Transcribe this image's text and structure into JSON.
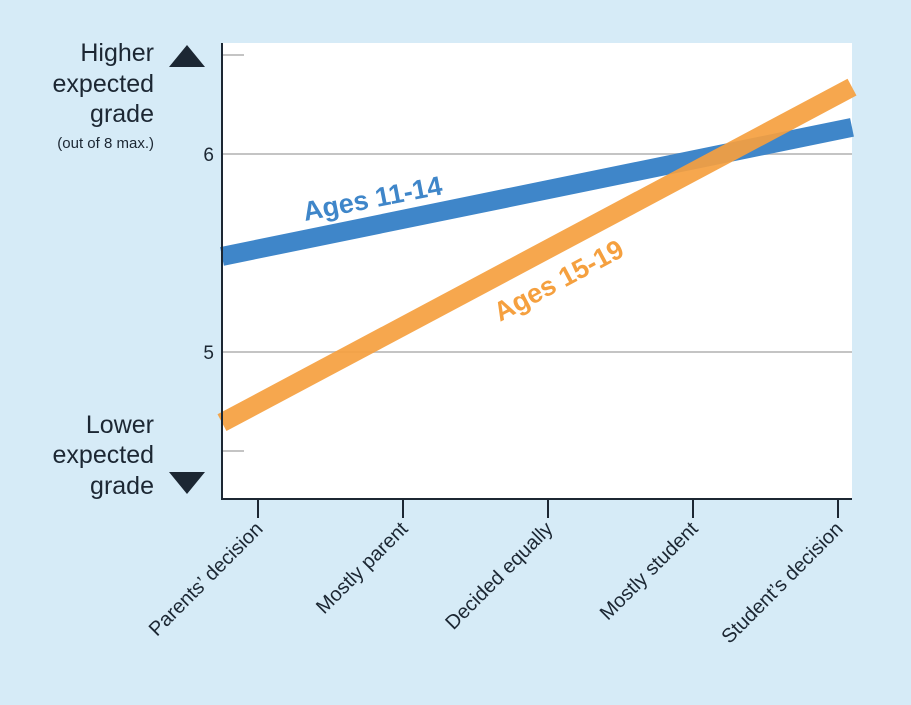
{
  "colors": {
    "background": "#d6ebf7",
    "plot_background": "#ffffff",
    "axis": "#1c2733",
    "gridline": "#c4c4c4",
    "series_11_14": "#3f86c9",
    "series_15_19": "#f5a03f"
  },
  "y_annotations": {
    "higher": [
      "Higher",
      "expected",
      "grade"
    ],
    "higher_note": "(out of 8 max.)",
    "lower": [
      "Lower",
      "expected",
      "grade"
    ]
  },
  "chart_data": {
    "type": "line",
    "categories": [
      "Parents’ decision",
      "Mostly parent",
      "Decided equally",
      "Mostly student",
      "Student’s decision"
    ],
    "series": [
      {
        "name": "Ages 11-14",
        "values": [
          5.52,
          5.67,
          5.82,
          5.97,
          6.12
        ],
        "color": "#3f86c9"
      },
      {
        "name": "Ages 15-19",
        "values": [
          4.74,
          5.13,
          5.52,
          5.91,
          6.3
        ],
        "color": "#f5a03f"
      }
    ],
    "yticks": [
      "5",
      "6"
    ],
    "ylim": [
      4.5,
      6.5
    ],
    "grid": true
  }
}
